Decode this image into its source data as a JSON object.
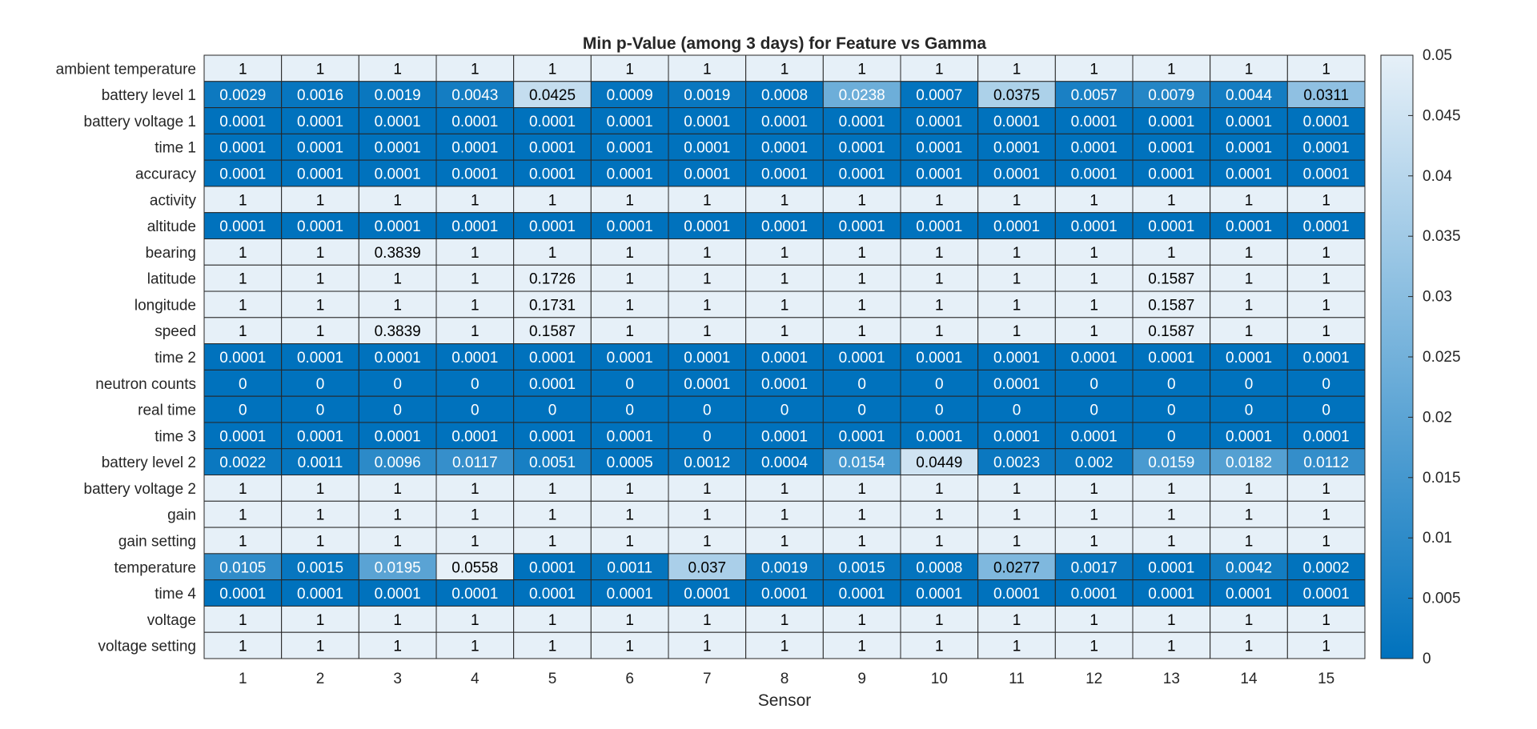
{
  "chart_data": {
    "type": "heatmap",
    "title": "Min p-Value (among 3 days) for Feature vs Gamma",
    "xlabel": "Sensor",
    "ylabel": "",
    "x_categories": [
      "1",
      "2",
      "3",
      "4",
      "5",
      "6",
      "7",
      "8",
      "9",
      "10",
      "11",
      "12",
      "13",
      "14",
      "15"
    ],
    "y_categories": [
      "ambient temperature",
      "battery level 1",
      "battery voltage 1",
      "time 1",
      "accuracy",
      "activity",
      "altitude",
      "bearing",
      "latitude",
      "longitude",
      "speed",
      "time 2",
      "neutron counts",
      "real time",
      "time 3",
      "battery level 2",
      "battery voltage 2",
      "gain",
      "gain setting",
      "temperature",
      "time 4",
      "voltage",
      "voltage setting"
    ],
    "values": [
      [
        "1",
        "1",
        "1",
        "1",
        "1",
        "1",
        "1",
        "1",
        "1",
        "1",
        "1",
        "1",
        "1",
        "1",
        "1"
      ],
      [
        "0.0029",
        "0.0016",
        "0.0019",
        "0.0043",
        "0.0425",
        "0.0009",
        "0.0019",
        "0.0008",
        "0.0238",
        "0.0007",
        "0.0375",
        "0.0057",
        "0.0079",
        "0.0044",
        "0.0311"
      ],
      [
        "0.0001",
        "0.0001",
        "0.0001",
        "0.0001",
        "0.0001",
        "0.0001",
        "0.0001",
        "0.0001",
        "0.0001",
        "0.0001",
        "0.0001",
        "0.0001",
        "0.0001",
        "0.0001",
        "0.0001"
      ],
      [
        "0.0001",
        "0.0001",
        "0.0001",
        "0.0001",
        "0.0001",
        "0.0001",
        "0.0001",
        "0.0001",
        "0.0001",
        "0.0001",
        "0.0001",
        "0.0001",
        "0.0001",
        "0.0001",
        "0.0001"
      ],
      [
        "0.0001",
        "0.0001",
        "0.0001",
        "0.0001",
        "0.0001",
        "0.0001",
        "0.0001",
        "0.0001",
        "0.0001",
        "0.0001",
        "0.0001",
        "0.0001",
        "0.0001",
        "0.0001",
        "0.0001"
      ],
      [
        "1",
        "1",
        "1",
        "1",
        "1",
        "1",
        "1",
        "1",
        "1",
        "1",
        "1",
        "1",
        "1",
        "1",
        "1"
      ],
      [
        "0.0001",
        "0.0001",
        "0.0001",
        "0.0001",
        "0.0001",
        "0.0001",
        "0.0001",
        "0.0001",
        "0.0001",
        "0.0001",
        "0.0001",
        "0.0001",
        "0.0001",
        "0.0001",
        "0.0001"
      ],
      [
        "1",
        "1",
        "0.3839",
        "1",
        "1",
        "1",
        "1",
        "1",
        "1",
        "1",
        "1",
        "1",
        "1",
        "1",
        "1"
      ],
      [
        "1",
        "1",
        "1",
        "1",
        "0.1726",
        "1",
        "1",
        "1",
        "1",
        "1",
        "1",
        "1",
        "0.1587",
        "1",
        "1"
      ],
      [
        "1",
        "1",
        "1",
        "1",
        "0.1731",
        "1",
        "1",
        "1",
        "1",
        "1",
        "1",
        "1",
        "0.1587",
        "1",
        "1"
      ],
      [
        "1",
        "1",
        "0.3839",
        "1",
        "0.1587",
        "1",
        "1",
        "1",
        "1",
        "1",
        "1",
        "1",
        "0.1587",
        "1",
        "1"
      ],
      [
        "0.0001",
        "0.0001",
        "0.0001",
        "0.0001",
        "0.0001",
        "0.0001",
        "0.0001",
        "0.0001",
        "0.0001",
        "0.0001",
        "0.0001",
        "0.0001",
        "0.0001",
        "0.0001",
        "0.0001"
      ],
      [
        "0",
        "0",
        "0",
        "0",
        "0.0001",
        "0",
        "0.0001",
        "0.0001",
        "0",
        "0",
        "0.0001",
        "0",
        "0",
        "0",
        "0"
      ],
      [
        "0",
        "0",
        "0",
        "0",
        "0",
        "0",
        "0",
        "0",
        "0",
        "0",
        "0",
        "0",
        "0",
        "0",
        "0"
      ],
      [
        "0.0001",
        "0.0001",
        "0.0001",
        "0.0001",
        "0.0001",
        "0.0001",
        "0",
        "0.0001",
        "0.0001",
        "0.0001",
        "0.0001",
        "0.0001",
        "0",
        "0.0001",
        "0.0001"
      ],
      [
        "0.0022",
        "0.0011",
        "0.0096",
        "0.0117",
        "0.0051",
        "0.0005",
        "0.0012",
        "0.0004",
        "0.0154",
        "0.0449",
        "0.0023",
        "0.002",
        "0.0159",
        "0.0182",
        "0.0112"
      ],
      [
        "1",
        "1",
        "1",
        "1",
        "1",
        "1",
        "1",
        "1",
        "1",
        "1",
        "1",
        "1",
        "1",
        "1",
        "1"
      ],
      [
        "1",
        "1",
        "1",
        "1",
        "1",
        "1",
        "1",
        "1",
        "1",
        "1",
        "1",
        "1",
        "1",
        "1",
        "1"
      ],
      [
        "1",
        "1",
        "1",
        "1",
        "1",
        "1",
        "1",
        "1",
        "1",
        "1",
        "1",
        "1",
        "1",
        "1",
        "1"
      ],
      [
        "0.0105",
        "0.0015",
        "0.0195",
        "0.0558",
        "0.0001",
        "0.0011",
        "0.037",
        "0.0019",
        "0.0015",
        "0.0008",
        "0.0277",
        "0.0017",
        "0.0001",
        "0.0042",
        "0.0002"
      ],
      [
        "0.0001",
        "0.0001",
        "0.0001",
        "0.0001",
        "0.0001",
        "0.0001",
        "0.0001",
        "0.0001",
        "0.0001",
        "0.0001",
        "0.0001",
        "0.0001",
        "0.0001",
        "0.0001",
        "0.0001"
      ],
      [
        "1",
        "1",
        "1",
        "1",
        "1",
        "1",
        "1",
        "1",
        "1",
        "1",
        "1",
        "1",
        "1",
        "1",
        "1"
      ],
      [
        "1",
        "1",
        "1",
        "1",
        "1",
        "1",
        "1",
        "1",
        "1",
        "1",
        "1",
        "1",
        "1",
        "1",
        "1"
      ]
    ],
    "color_range": [
      0,
      0.05
    ],
    "colorbar_ticks": [
      "0",
      "0.005",
      "0.01",
      "0.015",
      "0.02",
      "0.025",
      "0.03",
      "0.035",
      "0.04",
      "0.045",
      "0.05"
    ],
    "colors": {
      "low": "#0072BD",
      "high": "#E6F0F8",
      "over": "#E6F0F8",
      "grid": "#262626"
    },
    "grid": true,
    "legend": "colorbar-right"
  }
}
